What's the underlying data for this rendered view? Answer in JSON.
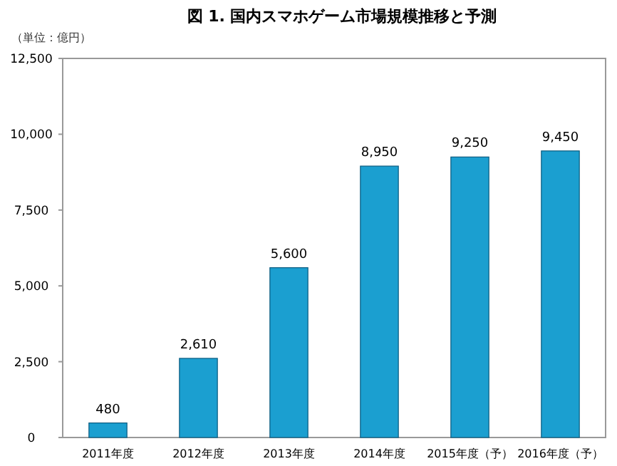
{
  "chart_data": {
    "type": "bar",
    "title": "図 1. 国内スマホゲーム市場規模推移と予測",
    "ylabel": "（単位：億円）",
    "categories": [
      "2011年度",
      "2012年度",
      "2013年度",
      "2014年度",
      "2015年度（予）",
      "2016年度（予）"
    ],
    "values": [
      480,
      2610,
      5600,
      8950,
      9250,
      9450
    ],
    "color": "#1b9fd0",
    "value_labels": [
      "480",
      "2,610",
      "5,600",
      "8,950",
      "9,250",
      "9,450"
    ],
    "ylim": [
      0,
      12500
    ],
    "yticks": [
      0,
      {
        "value": 2500,
        "label": "2,500"
      },
      {
        "value": 5000,
        "label": "5,000"
      },
      {
        "value": 7500,
        "label": "7,500"
      },
      {
        "value": 10000,
        "label": "10,000"
      },
      {
        "value": 12500,
        "label": "12,500"
      }
    ]
  }
}
